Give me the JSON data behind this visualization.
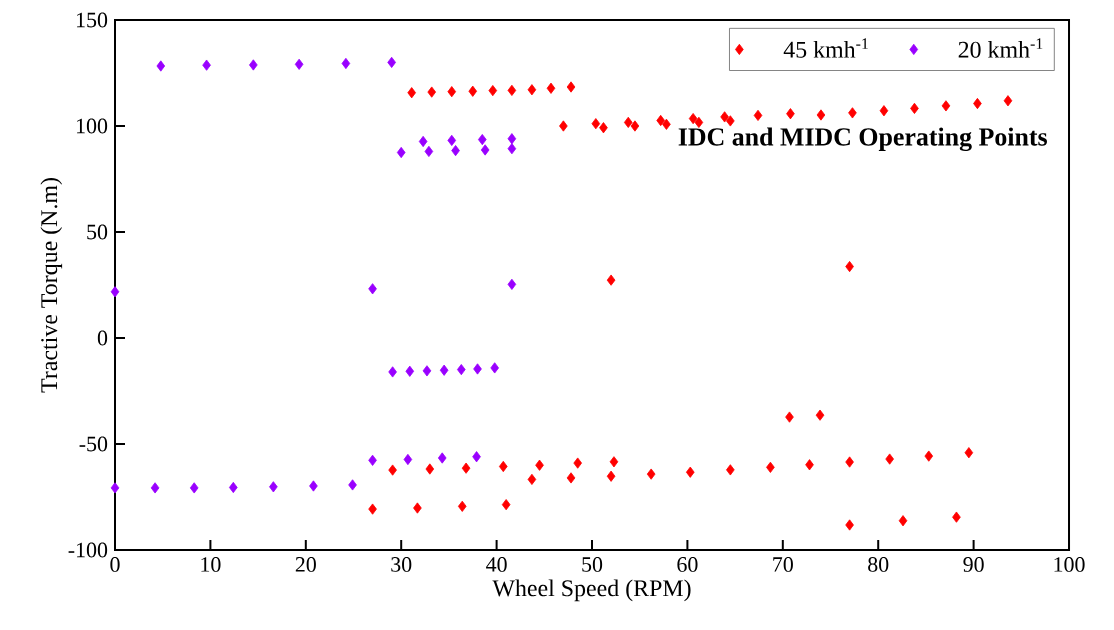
{
  "chart_data": {
    "type": "scatter",
    "xlabel": "Wheel Speed (RPM)",
    "ylabel": "Tractive Torque (N.m)",
    "xlim": [
      0,
      100
    ],
    "ylim": [
      -100,
      150
    ],
    "xticks": [
      0,
      10,
      20,
      30,
      40,
      50,
      60,
      70,
      80,
      90,
      100
    ],
    "yticks": [
      -100,
      -50,
      0,
      50,
      100,
      150
    ],
    "grid": false,
    "legend": "top right",
    "marker": "diamond",
    "annotations": [
      "IDC and MIDC Operating Points"
    ],
    "series": [
      {
        "name": "45 kmh$^{-1}$",
        "color": "#ff0000",
        "x": [
          31.1,
          33.2,
          35.3,
          37.5,
          39.6,
          41.6,
          43.7,
          45.7,
          47.8,
          47.0,
          50.4,
          51.2,
          53.8,
          54.5,
          57.2,
          57.8,
          60.6,
          61.2,
          63.9,
          64.5,
          67.4,
          70.8,
          74.0,
          77.3,
          80.6,
          83.8,
          87.1,
          90.4,
          93.6,
          52.0,
          77.0,
          27.0,
          31.7,
          36.4,
          41.0,
          29.1,
          33.0,
          36.8,
          40.7,
          43.7,
          44.5,
          47.8,
          48.5,
          52.0,
          52.3,
          56.2,
          60.3,
          64.5,
          68.7,
          70.7,
          73.9,
          72.8,
          77.0,
          77.0,
          81.2,
          82.6,
          85.3,
          88.2,
          89.5
        ],
        "values": [
          115.7,
          116.0,
          116.2,
          116.4,
          116.7,
          116.8,
          117.1,
          117.8,
          118.4,
          100.0,
          101.1,
          99.2,
          101.7,
          100.0,
          102.6,
          100.8,
          103.5,
          101.7,
          104.3,
          102.4,
          105.0,
          105.8,
          105.2,
          106.2,
          107.2,
          108.3,
          109.5,
          110.6,
          111.9,
          27.3,
          33.7,
          -80.7,
          -80.2,
          -79.4,
          -78.6,
          -62.3,
          -61.8,
          -61.4,
          -60.6,
          -66.7,
          -60.0,
          -66.0,
          -59.0,
          -65.2,
          -58.4,
          -64.2,
          -63.3,
          -62.2,
          -61.0,
          -37.3,
          -36.4,
          -59.8,
          -58.5,
          -88.2,
          -57.1,
          -86.2,
          -55.7,
          -84.5,
          -54.1
        ]
      },
      {
        "name": "20 kmh$^{-1}$",
        "color": "#9900ff",
        "x": [
          4.8,
          9.6,
          14.5,
          19.3,
          24.2,
          29.0,
          30.0,
          32.3,
          32.9,
          35.3,
          35.7,
          38.5,
          38.8,
          41.6,
          41.6,
          0,
          27.0,
          41.6,
          29.1,
          30.9,
          32.7,
          34.5,
          36.3,
          38.0,
          39.8,
          0,
          4.2,
          8.3,
          12.4,
          16.6,
          20.8,
          24.9,
          27.0,
          30.7,
          34.3,
          37.9
        ],
        "values": [
          128.3,
          128.7,
          128.8,
          129.1,
          129.5,
          130.0,
          87.5,
          92.7,
          88.0,
          93.2,
          88.4,
          93.6,
          88.7,
          94.0,
          89.3,
          21.8,
          23.2,
          25.3,
          -16.0,
          -15.7,
          -15.5,
          -15.2,
          -14.9,
          -14.6,
          -14.1,
          -70.7,
          -70.7,
          -70.7,
          -70.5,
          -70.2,
          -69.8,
          -69.3,
          -57.7,
          -57.3,
          -56.6,
          -56.0
        ]
      }
    ]
  }
}
